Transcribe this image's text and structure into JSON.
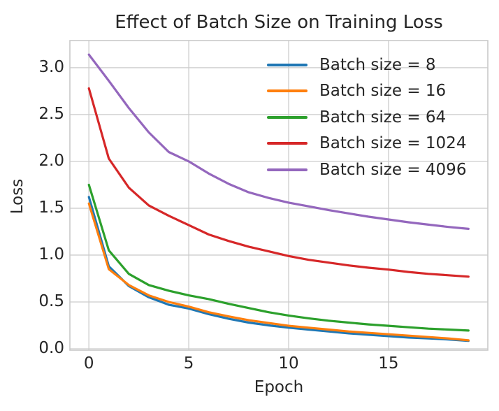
{
  "chart_data": {
    "type": "line",
    "title": "Effect of Batch Size on Training Loss",
    "xlabel": "Epoch",
    "ylabel": "Loss",
    "grid": true,
    "legend_position": "upper right inside, frameless",
    "xlim": [
      -0.95,
      19.97
    ],
    "ylim": [
      -0.015,
      3.29
    ],
    "xticks": [
      0,
      5,
      10,
      15
    ],
    "ytick_labels": [
      "0.0",
      "0.5",
      "1.0",
      "1.5",
      "2.0",
      "2.5",
      "3.0"
    ],
    "ytick_values": [
      0.0,
      0.5,
      1.0,
      1.5,
      2.0,
      2.5,
      3.0
    ],
    "x": [
      0,
      1,
      2,
      3,
      4,
      5,
      6,
      7,
      8,
      9,
      10,
      11,
      12,
      13,
      14,
      15,
      16,
      17,
      18,
      19
    ],
    "series": [
      {
        "name": "Batch size = 8",
        "color": "#1f77b4",
        "values": [
          1.62,
          0.88,
          0.67,
          0.55,
          0.47,
          0.43,
          0.37,
          0.32,
          0.28,
          0.25,
          0.225,
          0.205,
          0.185,
          0.165,
          0.15,
          0.135,
          0.12,
          0.11,
          0.1,
          0.085
        ]
      },
      {
        "name": "Batch size = 16",
        "color": "#ff7f0e",
        "values": [
          1.55,
          0.85,
          0.68,
          0.57,
          0.5,
          0.45,
          0.39,
          0.345,
          0.305,
          0.275,
          0.245,
          0.225,
          0.205,
          0.185,
          0.17,
          0.155,
          0.14,
          0.125,
          0.11,
          0.09
        ]
      },
      {
        "name": "Batch size = 64",
        "color": "#2ca02c",
        "values": [
          1.75,
          1.05,
          0.8,
          0.68,
          0.62,
          0.57,
          0.53,
          0.48,
          0.435,
          0.39,
          0.355,
          0.325,
          0.3,
          0.28,
          0.26,
          0.245,
          0.23,
          0.215,
          0.205,
          0.195
        ]
      },
      {
        "name": "Batch size = 1024",
        "color": "#d62728",
        "values": [
          2.78,
          2.03,
          1.72,
          1.53,
          1.42,
          1.32,
          1.22,
          1.15,
          1.09,
          1.04,
          0.99,
          0.95,
          0.92,
          0.89,
          0.865,
          0.845,
          0.82,
          0.8,
          0.785,
          0.77
        ]
      },
      {
        "name": "Batch size = 4096",
        "color": "#9467bd",
        "values": [
          3.14,
          2.86,
          2.57,
          2.31,
          2.1,
          2.0,
          1.87,
          1.76,
          1.67,
          1.61,
          1.56,
          1.52,
          1.48,
          1.445,
          1.41,
          1.38,
          1.35,
          1.325,
          1.3,
          1.28
        ]
      }
    ],
    "style": {
      "grid_color": "#cccccc",
      "spine_color": "#c9c9c9",
      "text_color": "#262626",
      "background": "#ffffff",
      "line_width": 3.2
    }
  }
}
